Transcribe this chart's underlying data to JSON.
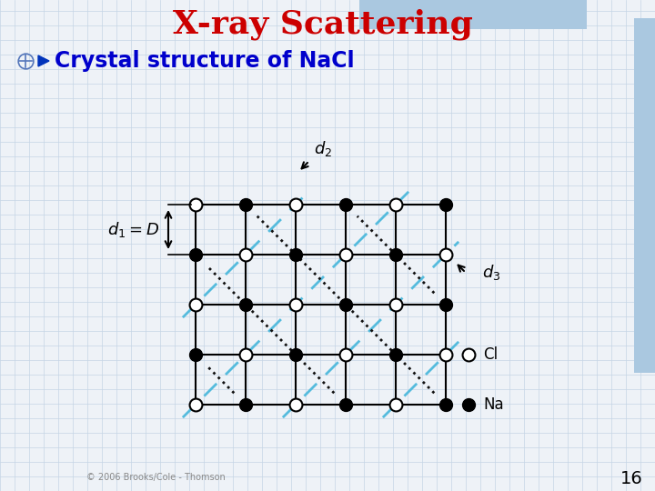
{
  "title": "X-ray Scattering",
  "title_color": "#cc0000",
  "title_fontsize": 26,
  "subtitle": "Crystal structure of NaCl",
  "subtitle_color": "#0000cc",
  "subtitle_fontsize": 17,
  "bg_color": "#eef2f7",
  "grid_line_color": "#c5d5e5",
  "page_number": "16",
  "copyright": "© 2006 Brooks/Cole - Thomson",
  "dashed_color": "#55bbdd",
  "dotted_color": "#111111",
  "ox": 215,
  "oy": 95,
  "cell": 55,
  "n_cols": 6,
  "n_rows": 5
}
